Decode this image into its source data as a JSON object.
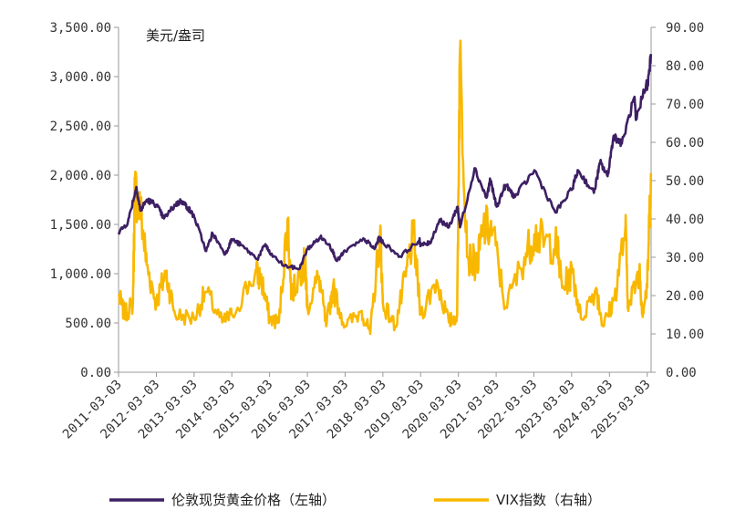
{
  "chart_data": {
    "type": "line",
    "unit_label": "美元/盎司",
    "x_tick_labels": [
      "2011-03-03",
      "2012-03-03",
      "2013-03-03",
      "2014-03-03",
      "2015-03-03",
      "2016-03-03",
      "2017-03-03",
      "2018-03-03",
      "2019-03-03",
      "2020-03-03",
      "2021-03-03",
      "2022-03-03",
      "2023-03-03",
      "2024-03-03",
      "2025-03-03"
    ],
    "y_left_ticks": [
      "0.00",
      "500.00",
      "1,000.00",
      "1,500.00",
      "2,000.00",
      "2,500.00",
      "3,000.00",
      "3,500.00"
    ],
    "y_right_ticks": [
      "0.00",
      "10.00",
      "20.00",
      "30.00",
      "40.00",
      "50.00",
      "60.00",
      "70.00",
      "80.00",
      "90.00"
    ],
    "x_range": [
      "2011-03-03",
      "2025-04-10"
    ],
    "y_left_range": [
      0,
      3500
    ],
    "y_right_range": [
      0,
      90
    ],
    "grid": false,
    "legend_position": "bottom",
    "series": [
      {
        "name": "伦敦现货黄金价格（左轴）",
        "axis": "left",
        "color": "#3d1f63",
        "points": [
          [
            "2011-03-03",
            1420
          ],
          [
            "2011-06-01",
            1520
          ],
          [
            "2011-08-22",
            1880
          ],
          [
            "2011-10-01",
            1640
          ],
          [
            "2011-12-01",
            1750
          ],
          [
            "2012-03-03",
            1700
          ],
          [
            "2012-05-15",
            1560
          ],
          [
            "2012-09-01",
            1700
          ],
          [
            "2012-11-01",
            1740
          ],
          [
            "2013-01-01",
            1670
          ],
          [
            "2013-03-03",
            1580
          ],
          [
            "2013-06-28",
            1230
          ],
          [
            "2013-08-28",
            1410
          ],
          [
            "2013-12-31",
            1200
          ],
          [
            "2014-03-03",
            1350
          ],
          [
            "2014-06-01",
            1290
          ],
          [
            "2014-11-05",
            1150
          ],
          [
            "2015-01-22",
            1300
          ],
          [
            "2015-03-03",
            1210
          ],
          [
            "2015-07-24",
            1080
          ],
          [
            "2015-12-17",
            1050
          ],
          [
            "2016-03-03",
            1250
          ],
          [
            "2016-07-06",
            1370
          ],
          [
            "2016-10-01",
            1300
          ],
          [
            "2016-12-15",
            1130
          ],
          [
            "2017-03-03",
            1230
          ],
          [
            "2017-09-08",
            1350
          ],
          [
            "2017-12-12",
            1250
          ],
          [
            "2018-01-25",
            1360
          ],
          [
            "2018-03-03",
            1320
          ],
          [
            "2018-08-16",
            1175
          ],
          [
            "2019-02-20",
            1340
          ],
          [
            "2019-03-03",
            1290
          ],
          [
            "2019-06-01",
            1310
          ],
          [
            "2019-09-04",
            1550
          ],
          [
            "2019-12-01",
            1470
          ],
          [
            "2020-02-24",
            1680
          ],
          [
            "2020-03-19",
            1470
          ],
          [
            "2020-08-06",
            2070
          ],
          [
            "2020-11-30",
            1770
          ],
          [
            "2021-01-05",
            1950
          ],
          [
            "2021-03-08",
            1680
          ],
          [
            "2021-06-01",
            1900
          ],
          [
            "2021-09-01",
            1780
          ],
          [
            "2022-03-08",
            2050
          ],
          [
            "2022-09-28",
            1620
          ],
          [
            "2023-03-03",
            1850
          ],
          [
            "2023-05-04",
            2050
          ],
          [
            "2023-10-05",
            1820
          ],
          [
            "2023-12-04",
            2130
          ],
          [
            "2024-02-14",
            1990
          ],
          [
            "2024-04-12",
            2400
          ],
          [
            "2024-07-01",
            2320
          ],
          [
            "2024-10-30",
            2790
          ],
          [
            "2024-11-14",
            2560
          ],
          [
            "2025-02-24",
            2950
          ],
          [
            "2025-03-03",
            2870
          ],
          [
            "2025-04-10",
            3230
          ]
        ]
      },
      {
        "name": "VIX指数（右轴）",
        "axis": "right",
        "color": "#f9b800",
        "points": [
          [
            "2011-03-03",
            20
          ],
          [
            "2011-05-01",
            15
          ],
          [
            "2011-07-20",
            18
          ],
          [
            "2011-08-08",
            48
          ],
          [
            "2011-10-03",
            42
          ],
          [
            "2011-12-01",
            28
          ],
          [
            "2012-03-03",
            18
          ],
          [
            "2012-06-01",
            26
          ],
          [
            "2012-09-01",
            15
          ],
          [
            "2013-03-03",
            14
          ],
          [
            "2013-06-24",
            21
          ],
          [
            "2013-12-01",
            13
          ],
          [
            "2014-03-03",
            15
          ],
          [
            "2014-10-15",
            26
          ],
          [
            "2014-12-16",
            24
          ],
          [
            "2015-03-03",
            14
          ],
          [
            "2015-06-01",
            13
          ],
          [
            "2015-08-24",
            40
          ],
          [
            "2015-10-01",
            20
          ],
          [
            "2016-01-20",
            28
          ],
          [
            "2016-02-11",
            28
          ],
          [
            "2016-03-03",
            17
          ],
          [
            "2016-06-24",
            25
          ],
          [
            "2016-09-01",
            12
          ],
          [
            "2016-11-04",
            22
          ],
          [
            "2017-03-03",
            12
          ],
          [
            "2017-08-11",
            16
          ],
          [
            "2017-11-01",
            10
          ],
          [
            "2018-02-05",
            37
          ],
          [
            "2018-03-03",
            18
          ],
          [
            "2018-07-01",
            12
          ],
          [
            "2018-10-10",
            25
          ],
          [
            "2018-12-24",
            36
          ],
          [
            "2019-03-03",
            15
          ],
          [
            "2019-08-05",
            24
          ],
          [
            "2019-12-01",
            13
          ],
          [
            "2020-02-20",
            15
          ],
          [
            "2020-03-16",
            82
          ],
          [
            "2020-06-01",
            30
          ],
          [
            "2020-09-01",
            28
          ],
          [
            "2020-10-30",
            38
          ],
          [
            "2021-01-27",
            37
          ],
          [
            "2021-06-01",
            17
          ],
          [
            "2021-12-01",
            30
          ],
          [
            "2022-03-07",
            36
          ],
          [
            "2022-06-13",
            34
          ],
          [
            "2022-10-12",
            33
          ],
          [
            "2022-12-01",
            22
          ],
          [
            "2023-03-13",
            26
          ],
          [
            "2023-06-01",
            14
          ],
          [
            "2023-10-27",
            22
          ],
          [
            "2024-01-01",
            12
          ],
          [
            "2024-04-19",
            19
          ],
          [
            "2024-08-05",
            38
          ],
          [
            "2024-09-01",
            16
          ],
          [
            "2024-12-18",
            27
          ],
          [
            "2025-01-15",
            16
          ],
          [
            "2025-03-03",
            22
          ],
          [
            "2025-04-08",
            52
          ]
        ]
      }
    ]
  }
}
